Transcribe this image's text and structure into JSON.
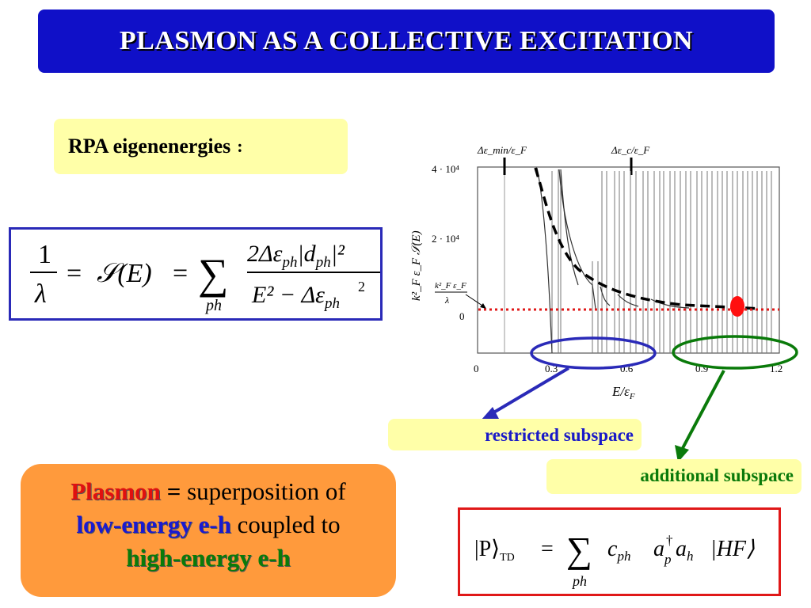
{
  "title": "PLASMON AS A COLLECTIVE EXCITATION",
  "rpa_label": "RPA eigenenergies",
  "rpa_colon": ":",
  "equation": {
    "lhs_num": "1",
    "lhs_den": "λ",
    "eq": "=",
    "func": "𝒮(E)",
    "sum": "∑",
    "sum_sub": "ph",
    "frac_num": "2Δε",
    "frac_num_sub": "ph",
    "frac_num_abs": "|d",
    "frac_num_abs_sub": "ph",
    "frac_num_sq": "|²",
    "frac_den": "E² − Δε",
    "frac_den_sub": "ph",
    "frac_den_sup": "2"
  },
  "plot": {
    "x_label": "E/ε",
    "x_label_sub": "F",
    "y_label": "k²_F ε_F 𝒮(E)",
    "x_ticks": [
      "0",
      "0.3",
      "0.6",
      "0.9",
      "1.2"
    ],
    "y_ticks": [
      "4 · 10⁴",
      "2 · 10⁴",
      "0"
    ],
    "marker_min": "Δε_min/ε_F",
    "marker_c": "Δε_c/ε_F",
    "level_label_num": "k²_F ε_F",
    "level_label_den": "λ"
  },
  "plasmon": {
    "word": "Plasmon",
    "eq": "=",
    "text1": "superposition of",
    "low": "low-energy e-h",
    "text2": "coupled to",
    "high": "high-energy e-h"
  },
  "restricted": "restricted subspace",
  "additional": "additional subspace",
  "td_eq": {
    "ket": "|P⟩",
    "ket_sub": "TD",
    "eq": "=",
    "sum": "∑",
    "sum_sub": "ph",
    "c": "c",
    "c_sub": "ph",
    "a1": "a",
    "a1_sup": "†",
    "a1_sub": "p",
    "a2": "a",
    "a2_sub": "h",
    "hf": "|HF⟩"
  },
  "colors": {
    "title_bg": "#1010c8",
    "label_bg": "#ffffa8",
    "plasmon_bg": "#ff9a3c",
    "blue": "#2a2ab8",
    "green": "#0a7a0a",
    "red": "#e01818"
  }
}
